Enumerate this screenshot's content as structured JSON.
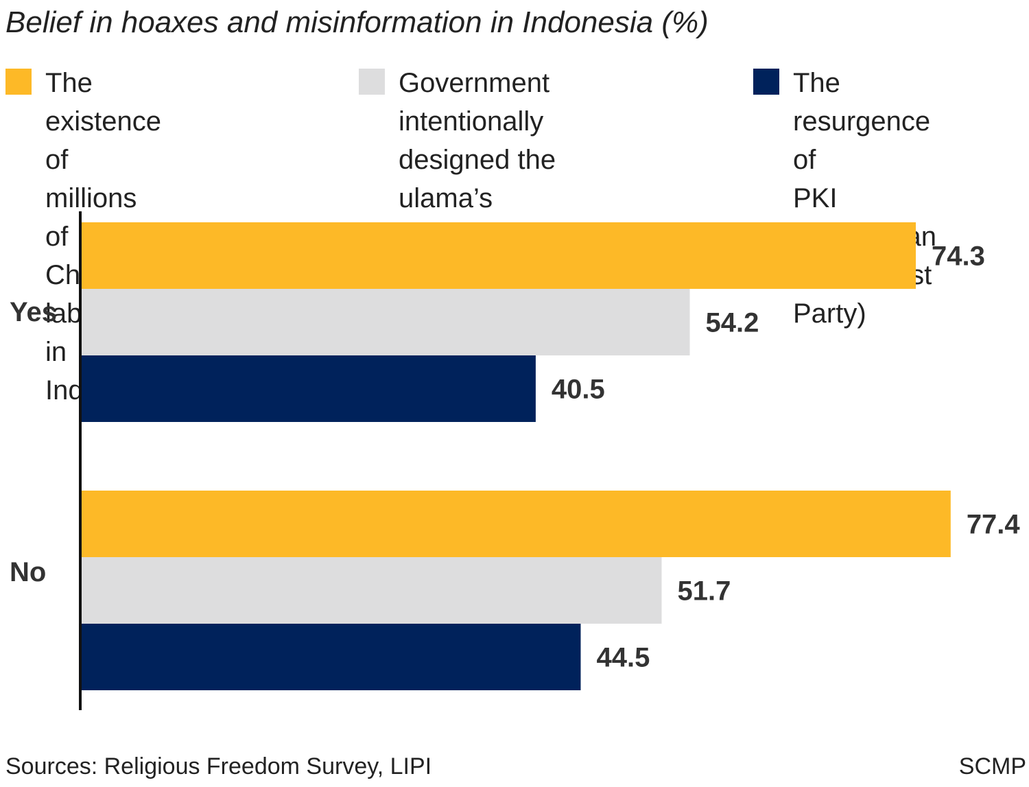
{
  "chart_data": {
    "type": "bar",
    "orientation": "horizontal",
    "title": "Belief in hoaxes and misinformation in Indonesia (%)",
    "categories": [
      "Yes",
      "No"
    ],
    "series": [
      {
        "name": "The existence of millions of Chinese labourers in Indonesia",
        "color": "#FDB927",
        "values": [
          74.3,
          77.4
        ]
      },
      {
        "name": "Government intentionally designed the ulama’s criminalisation",
        "color": "#DDDDDE",
        "values": [
          54.2,
          51.7
        ]
      },
      {
        "name": "The resurgence of PKI (Indonesian Communist Party)",
        "color": "#00225B",
        "values": [
          40.5,
          44.5
        ]
      }
    ],
    "xlim": [
      0,
      80
    ],
    "grid": false,
    "legend_position": "top",
    "data_labels": [
      "74.3",
      "54.2",
      "40.5",
      "77.4",
      "51.7",
      "44.5"
    ]
  },
  "legend": {
    "labels": [
      "The existence of\nmillions of Chinese\nlabourers in Indonesia",
      "Government intentionally\ndesigned the ulama’s\ncriminalisation",
      "The resurgence of\nPKI (Indonesian\nCommunist Party)"
    ]
  },
  "footer": {
    "source": "Sources: Religious Freedom Survey, LIPI",
    "credit": "SCMP"
  }
}
